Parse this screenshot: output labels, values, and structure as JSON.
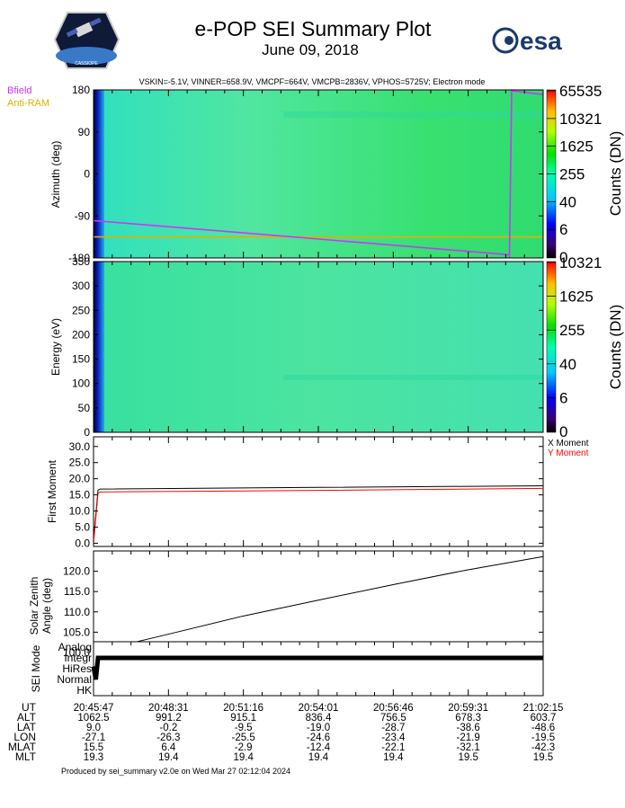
{
  "header": {
    "title": "e-POP SEI Summary Plot",
    "date": "June 09, 2018",
    "params": "VSKIN=-5.1V, VINNER=658.9V, VMCPF=664V, VMCPB=2836V, VPHOS=5725V; Electron mode",
    "logo_left_text": "CASSIOPE",
    "logo_right_text": "esa"
  },
  "colors": {
    "bfield": "#cc33ff",
    "antiram": "#e0b000",
    "x_moment": "#000000",
    "y_moment": "#ff0000",
    "spectrogram_bg": "#4ee0a0"
  },
  "chart_data": [
    {
      "type": "heatmap",
      "panel": "azimuth",
      "ylabel": "Azimuth (deg)",
      "ylim": [
        -180,
        180
      ],
      "yticks": [
        "180",
        "90",
        "0",
        "-90",
        "-180"
      ],
      "ytick_values": [
        180,
        90,
        0,
        -90,
        -180
      ],
      "legend": [
        "Bfield",
        "Anti-RAM"
      ],
      "colorbar_label": "Counts (DN)",
      "colorbar_ticks": [
        "65535",
        "10321",
        "1625",
        "255",
        "40",
        "6",
        "0"
      ],
      "bfield_line": {
        "x": [
          0,
          0.925,
          0.93,
          1.0
        ],
        "y": [
          -100,
          -173,
          178,
          170
        ]
      },
      "antiram_line": {
        "x": [
          0,
          1.0
        ],
        "y": [
          -135,
          -135
        ]
      }
    },
    {
      "type": "heatmap",
      "panel": "energy",
      "ylabel": "Energy (eV)",
      "ylim": [
        0,
        350
      ],
      "yticks": [
        "350",
        "300",
        "250",
        "200",
        "150",
        "100",
        "50",
        "0"
      ],
      "ytick_values": [
        350,
        300,
        250,
        200,
        150,
        100,
        50,
        0
      ],
      "colorbar_label": "Counts (DN)",
      "colorbar_ticks": [
        "10321",
        "1625",
        "255",
        "40",
        "6",
        "0"
      ]
    },
    {
      "type": "line",
      "panel": "moment",
      "ylabel": "First Moment",
      "ylim": [
        -1,
        33
      ],
      "yticks": [
        "30.0",
        "25.0",
        "20.0",
        "15.0",
        "10.0",
        "5.0",
        "0.0"
      ],
      "ytick_values": [
        30,
        25,
        20,
        15,
        10,
        5,
        0
      ],
      "series": [
        {
          "name": "X Moment",
          "x": [
            0,
            0.01,
            0.015,
            0.5,
            1.0
          ],
          "values": [
            1,
            16.5,
            16.8,
            17.3,
            17.8
          ]
        },
        {
          "name": "Y Moment",
          "x": [
            0,
            0.01,
            0.015,
            0.5,
            1.0
          ],
          "values": [
            0,
            15.5,
            15.9,
            16.4,
            17.0
          ]
        }
      ]
    },
    {
      "type": "line",
      "panel": "zenith",
      "ylabel": "Solar Zenith Angle (deg)",
      "ylabel_lines": [
        "Solar Zenith",
        "Angle (deg)"
      ],
      "ylim": [
        98,
        125
      ],
      "yticks": [
        "120.0",
        "115.0",
        "110.0",
        "105.0",
        "100.0"
      ],
      "ytick_values": [
        120,
        115,
        110,
        105,
        100
      ],
      "series": [
        {
          "x": [
            0,
            0.17,
            0.33,
            0.5,
            0.67,
            0.83,
            1.0
          ],
          "values": [
            100.1,
            104.6,
            108.9,
            112.9,
            116.8,
            120.3,
            123.6
          ]
        }
      ]
    },
    {
      "type": "line",
      "panel": "mode",
      "ylabel": "SEI Mode",
      "categories": [
        "Analog",
        "Integr",
        "HiRes",
        "Normal",
        "HK"
      ],
      "series": [
        {
          "x": [
            0,
            0.005,
            0.01,
            1.0
          ],
          "values": [
            2.2,
            1.0,
            3.0,
            3.0
          ]
        }
      ]
    }
  ],
  "time_table": {
    "row_labels": [
      "UT",
      "ALT",
      "LAT",
      "LON",
      "MLAT",
      "MLT"
    ],
    "columns": [
      [
        "20:45:47",
        "1062.5",
        "9.0",
        "-27.1",
        "15.5",
        "19.3"
      ],
      [
        "20:48:31",
        "991.2",
        "-0.2",
        "-26.3",
        "6.4",
        "19.4"
      ],
      [
        "20:51:16",
        "915.1",
        "-9.5",
        "-25.5",
        "-2.9",
        "19.4"
      ],
      [
        "20:54:01",
        "836.4",
        "-19.0",
        "-24.6",
        "-12.4",
        "19.4"
      ],
      [
        "20:56:46",
        "756.5",
        "-28.7",
        "-23.4",
        "-22.1",
        "19.4"
      ],
      [
        "20:59:31",
        "678.3",
        "-38.6",
        "-21.9",
        "-32.1",
        "19.5"
      ],
      [
        "21:02:15",
        "603.7",
        "-48.6",
        "-19.5",
        "-42.3",
        "19.5"
      ]
    ]
  },
  "footer": "Produced by sei_summary v2.0e on Wed Mar 27 02:12:04 2024"
}
